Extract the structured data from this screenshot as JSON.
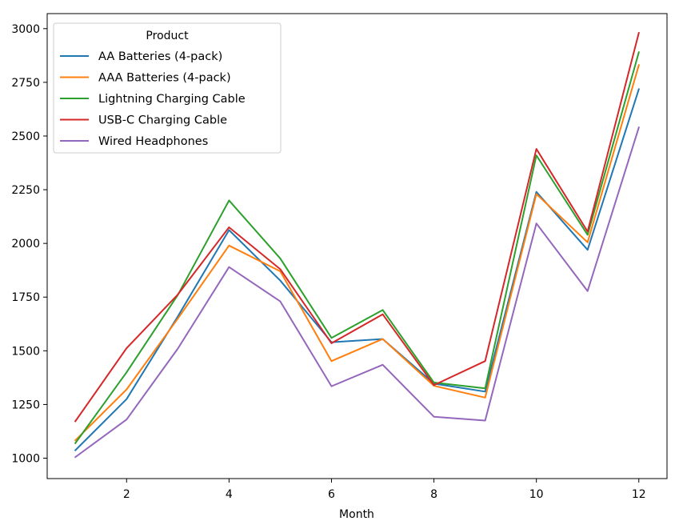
{
  "chart_data": {
    "type": "line",
    "title": "",
    "xlabel": "Month",
    "ylabel": "",
    "x": [
      1,
      2,
      3,
      4,
      5,
      6,
      7,
      8,
      9,
      10,
      11,
      12
    ],
    "xticks": [
      2,
      4,
      6,
      8,
      10,
      12
    ],
    "yticks": [
      1000,
      1250,
      1500,
      1750,
      2000,
      2250,
      2500,
      2750,
      3000
    ],
    "xlim": [
      0.45,
      12.55
    ],
    "ylim": [
      905,
      3070
    ],
    "grid": false,
    "legend": {
      "title": "Product",
      "placement": "top-left"
    },
    "series": [
      {
        "name": "AA Batteries (4-pack)",
        "color": "#1f77b4",
        "values": [
          1037,
          1275,
          1660,
          2062,
          1827,
          1540,
          1555,
          1347,
          1310,
          2240,
          1970,
          2718
        ]
      },
      {
        "name": "AAA Batteries (4-pack)",
        "color": "#ff7f0e",
        "values": [
          1083,
          1320,
          1650,
          1990,
          1870,
          1452,
          1555,
          1337,
          1282,
          2230,
          2005,
          2830
        ]
      },
      {
        "name": "Lightning Charging Cable",
        "color": "#2ca02c",
        "values": [
          1070,
          1400,
          1760,
          2200,
          1930,
          1560,
          1690,
          1352,
          1325,
          2410,
          2040,
          2890
        ]
      },
      {
        "name": "USB-C Charging Cable",
        "color": "#d62728",
        "values": [
          1172,
          1512,
          1762,
          2075,
          1880,
          1535,
          1670,
          1340,
          1452,
          2440,
          2055,
          2980
        ]
      },
      {
        "name": "Wired Headphones",
        "color": "#9467bd",
        "values": [
          1005,
          1180,
          1510,
          1890,
          1730,
          1335,
          1435,
          1193,
          1175,
          2093,
          1778,
          2540
        ]
      }
    ]
  }
}
